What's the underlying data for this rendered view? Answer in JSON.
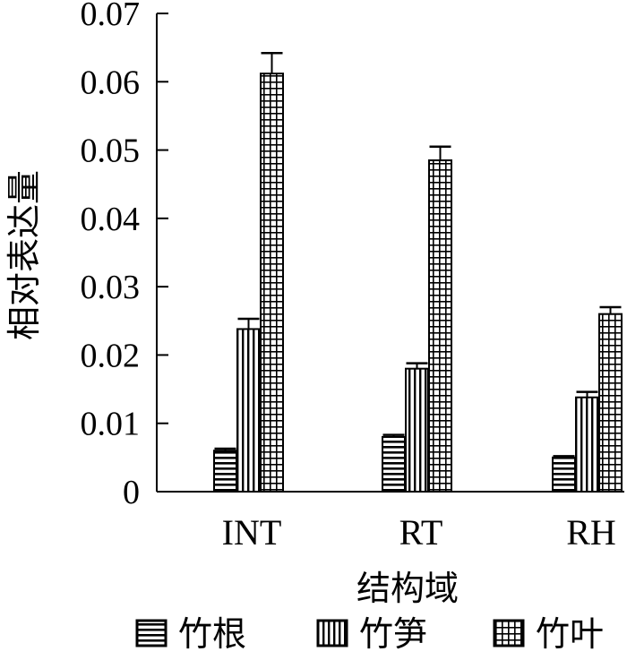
{
  "chart_data": {
    "type": "bar",
    "title": "",
    "xlabel": "结构域",
    "ylabel": "相对表达量",
    "categories": [
      "INT",
      "RT",
      "RH"
    ],
    "series": [
      {
        "name": "竹根",
        "values": [
          0.006,
          0.008,
          0.005
        ],
        "errors": [
          0.0003,
          0.0003,
          0.0002
        ]
      },
      {
        "name": "竹笋",
        "values": [
          0.0238,
          0.018,
          0.0138
        ],
        "errors": [
          0.0015,
          0.0008,
          0.0008
        ]
      },
      {
        "name": "竹叶",
        "values": [
          0.0612,
          0.0485,
          0.026
        ],
        "errors": [
          0.003,
          0.002,
          0.001
        ]
      }
    ],
    "ylim": [
      0,
      0.07
    ],
    "yticks": [
      "0",
      "0.01",
      "0.02",
      "0.03",
      "0.04",
      "0.05",
      "0.06",
      "0.07"
    ],
    "grid": false,
    "legend": "bottom",
    "error_bars": true
  }
}
